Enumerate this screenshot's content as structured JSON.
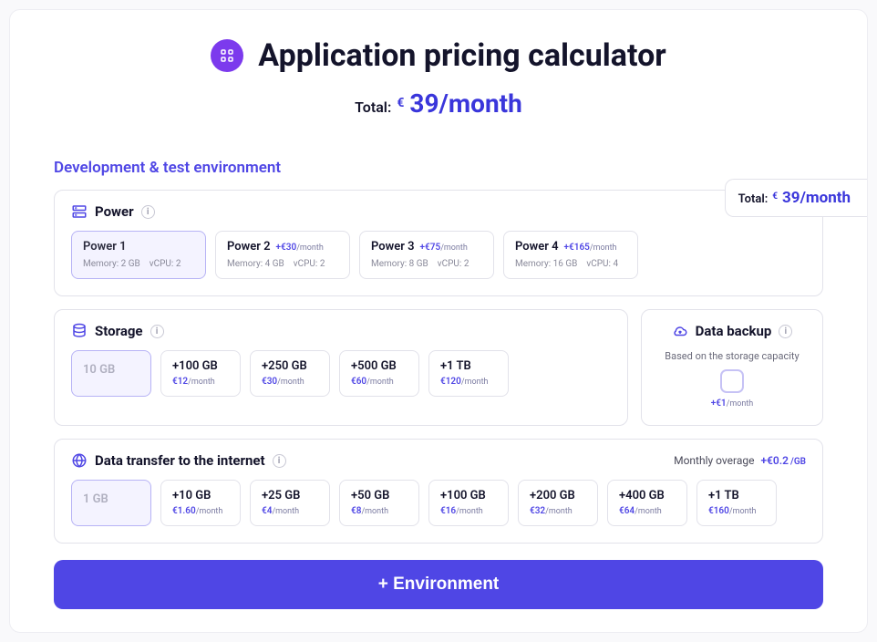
{
  "colors": {
    "accent": "#4f46e5",
    "chip": "#7c3aed",
    "border": "#e2e2ea",
    "selectedBg": "#f4f3ff",
    "selectedBorder": "#b7b3f5"
  },
  "header": {
    "title": "Application pricing calculator",
    "totalLabel": "Total:",
    "currency": "€",
    "totalValue": "39",
    "perUnit": "/month"
  },
  "floatingTotal": {
    "label": "Total:",
    "currency": "€",
    "value": "39",
    "perUnit": "/month"
  },
  "environmentLabel": "Development & test environment",
  "power": {
    "icon": "server",
    "title": "Power",
    "options": [
      {
        "name": "Power 1",
        "memory": "Memory: 2 GB",
        "vcpu": "vCPU: 2",
        "price": null,
        "selected": true
      },
      {
        "name": "Power 2",
        "memory": "Memory: 4 GB",
        "vcpu": "vCPU: 2",
        "price": "+€30",
        "per": "/month",
        "selected": false
      },
      {
        "name": "Power 3",
        "memory": "Memory: 8 GB",
        "vcpu": "vCPU: 2",
        "price": "+€75",
        "per": "/month",
        "selected": false
      },
      {
        "name": "Power 4",
        "memory": "Memory: 16 GB",
        "vcpu": "vCPU: 4",
        "price": "+€165",
        "per": "/month",
        "selected": false
      }
    ]
  },
  "storage": {
    "icon": "database",
    "title": "Storage",
    "options": [
      {
        "name": "10 GB",
        "price": null,
        "selected": true
      },
      {
        "name": "+100 GB",
        "price": "€12",
        "per": "/month",
        "selected": false
      },
      {
        "name": "+250 GB",
        "price": "€30",
        "per": "/month",
        "selected": false
      },
      {
        "name": "+500 GB",
        "price": "€60",
        "per": "/month",
        "selected": false
      },
      {
        "name": "+1 TB",
        "price": "€120",
        "per": "/month",
        "selected": false
      }
    ]
  },
  "backup": {
    "icon": "cloud",
    "title": "Data backup",
    "subtitle": "Based on the storage capacity",
    "price": "+€1",
    "per": "/month"
  },
  "transfer": {
    "icon": "globe",
    "title": "Data transfer to the internet",
    "overageLabel": "Monthly overage",
    "overagePrice": "+€0.2",
    "overageUnit": "/GB",
    "options": [
      {
        "name": "1 GB",
        "price": null,
        "selected": true
      },
      {
        "name": "+10 GB",
        "price": "€1.60",
        "per": "/month",
        "selected": false
      },
      {
        "name": "+25 GB",
        "price": "€4",
        "per": "/month",
        "selected": false
      },
      {
        "name": "+50 GB",
        "price": "€8",
        "per": "/month",
        "selected": false
      },
      {
        "name": "+100 GB",
        "price": "€16",
        "per": "/month",
        "selected": false
      },
      {
        "name": "+200 GB",
        "price": "€32",
        "per": "/month",
        "selected": false
      },
      {
        "name": "+400 GB",
        "price": "€64",
        "per": "/month",
        "selected": false
      },
      {
        "name": "+1 TB",
        "price": "€160",
        "per": "/month",
        "selected": false
      }
    ]
  },
  "addEnvironmentLabel": "+ Environment"
}
